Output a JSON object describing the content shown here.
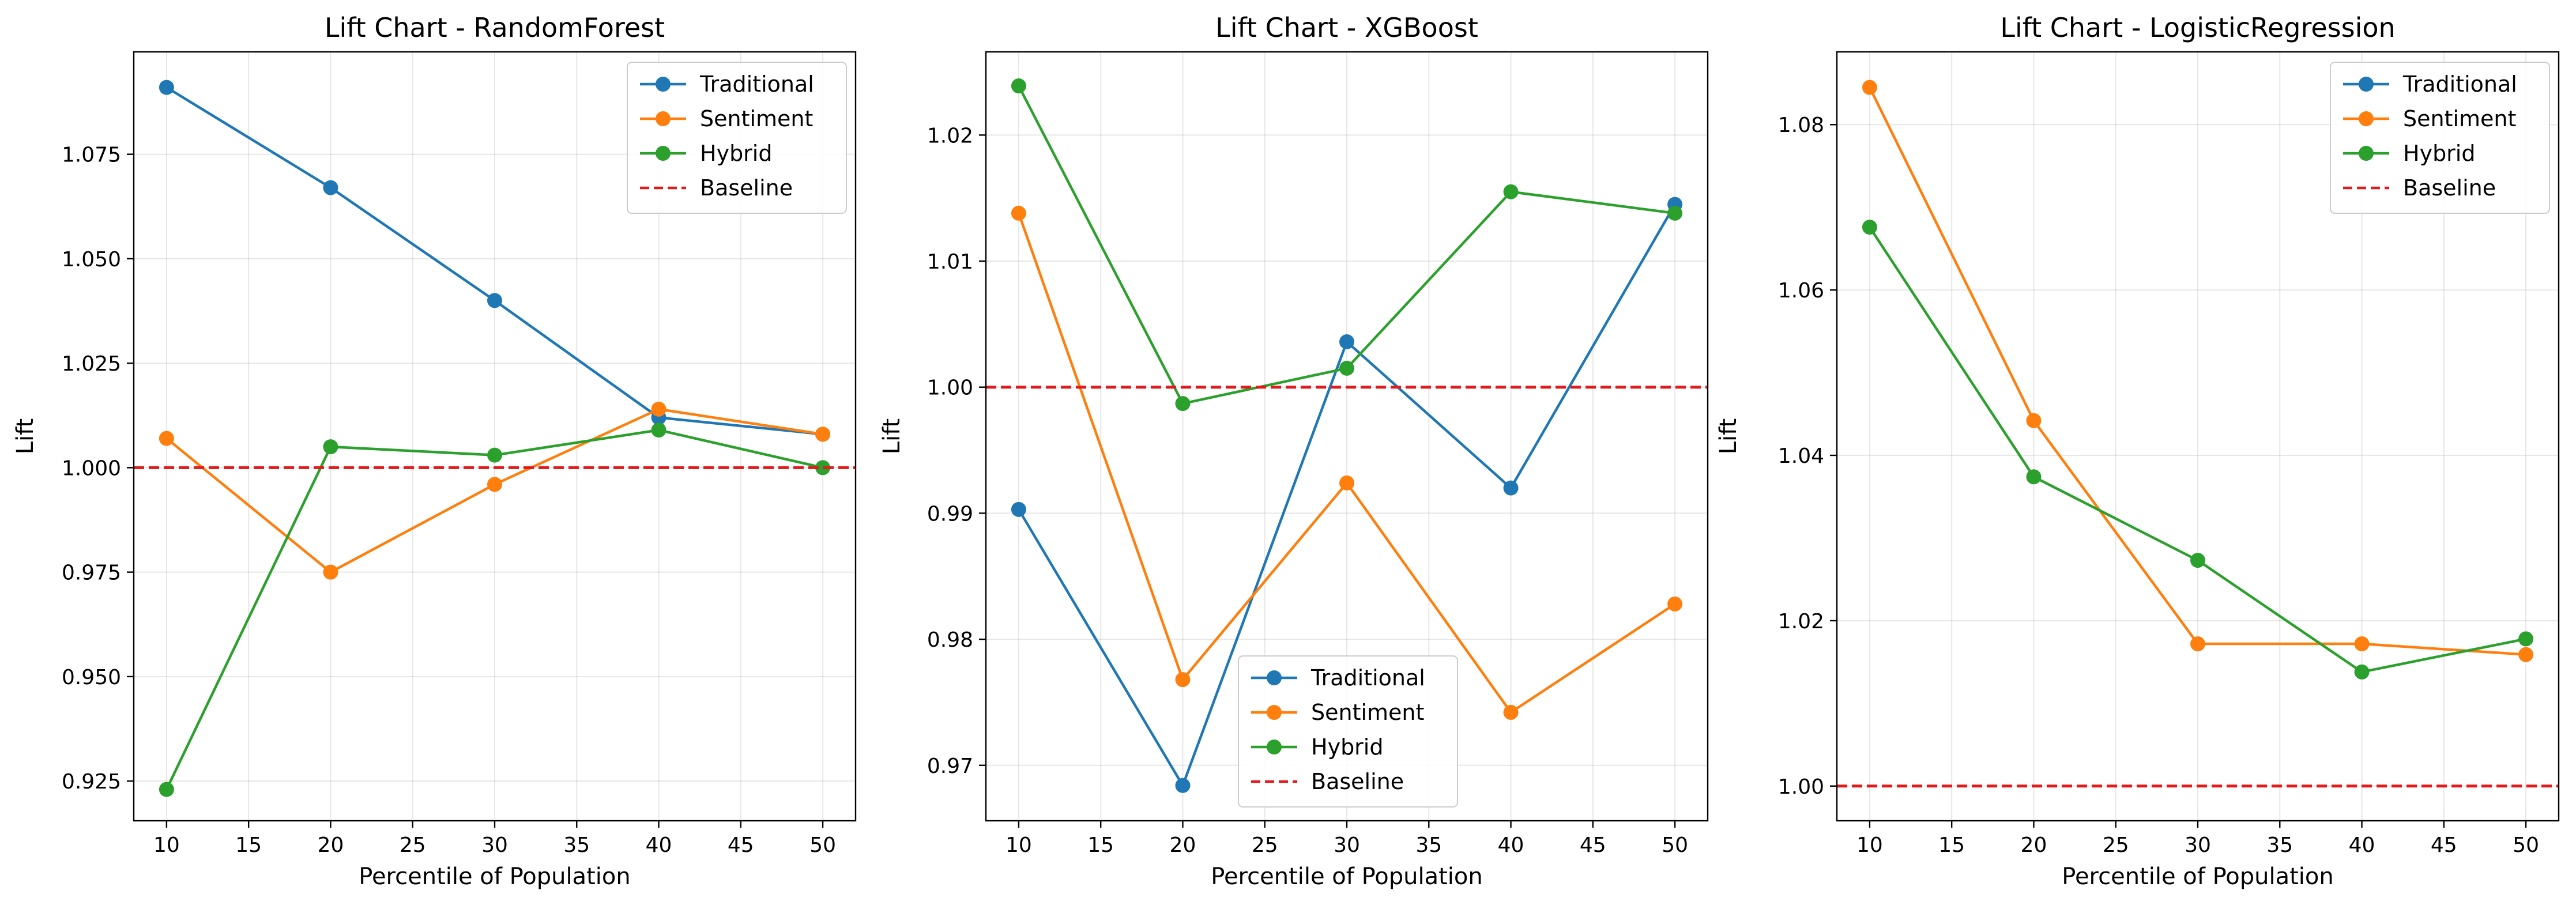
{
  "colors": {
    "traditional": "#1f77b4",
    "sentiment": "#ff7f0e",
    "hybrid": "#2ca02c",
    "baseline": "#e31a1c"
  },
  "chart_data": [
    {
      "type": "line",
      "title": "Lift Chart - RandomForest",
      "xlabel": "Percentile of Population",
      "ylabel": "Lift",
      "x": [
        10,
        20,
        30,
        40,
        50
      ],
      "xlim": [
        8,
        52
      ],
      "ylim": [
        0.9155,
        1.0995
      ],
      "xticks": [
        10,
        15,
        20,
        25,
        30,
        35,
        40,
        45,
        50
      ],
      "yticks": [
        0.925,
        0.95,
        0.975,
        1.0,
        1.025,
        1.05,
        1.075
      ],
      "ytick_labels": [
        "0.925",
        "0.950",
        "0.975",
        "1.000",
        "1.025",
        "1.050",
        "1.075"
      ],
      "grid": true,
      "legend_position": "top-right",
      "series": [
        {
          "name": "Traditional",
          "color": "#1f77b4",
          "values": [
            1.091,
            1.067,
            1.04,
            1.012,
            1.008
          ]
        },
        {
          "name": "Sentiment",
          "color": "#ff7f0e",
          "values": [
            1.007,
            0.975,
            0.996,
            1.014,
            1.008
          ]
        },
        {
          "name": "Hybrid",
          "color": "#2ca02c",
          "values": [
            0.923,
            1.005,
            1.003,
            1.009,
            1.0
          ]
        }
      ],
      "baseline": {
        "name": "Baseline",
        "color": "#e31a1c",
        "value": 1.0
      }
    },
    {
      "type": "line",
      "title": "Lift Chart - XGBoost",
      "xlabel": "Percentile of Population",
      "ylabel": "Lift",
      "x": [
        10,
        20,
        30,
        40,
        50
      ],
      "xlim": [
        8,
        52
      ],
      "ylim": [
        0.9656,
        1.0266
      ],
      "xticks": [
        10,
        15,
        20,
        25,
        30,
        35,
        40,
        45,
        50
      ],
      "yticks": [
        0.97,
        0.98,
        0.99,
        1.0,
        1.01,
        1.02
      ],
      "ytick_labels": [
        "0.97",
        "0.98",
        "0.99",
        "1.00",
        "1.01",
        "1.02"
      ],
      "grid": true,
      "legend_position": "bottom-center",
      "series": [
        {
          "name": "Traditional",
          "color": "#1f77b4",
          "values": [
            0.9903,
            0.9684,
            1.0036,
            0.992,
            1.0145
          ]
        },
        {
          "name": "Sentiment",
          "color": "#ff7f0e",
          "values": [
            1.0138,
            0.9768,
            0.9924,
            0.9742,
            0.9828
          ]
        },
        {
          "name": "Hybrid",
          "color": "#2ca02c",
          "values": [
            1.0239,
            0.9987,
            1.0015,
            1.0155,
            1.0138
          ]
        }
      ],
      "baseline": {
        "name": "Baseline",
        "color": "#e31a1c",
        "value": 1.0
      }
    },
    {
      "type": "line",
      "title": "Lift Chart - LogisticRegression",
      "xlabel": "Percentile of Population",
      "ylabel": "Lift",
      "x": [
        10,
        20,
        30,
        40,
        50
      ],
      "xlim": [
        8,
        52
      ],
      "ylim": [
        0.9958,
        1.0888
      ],
      "xticks": [
        10,
        15,
        20,
        25,
        30,
        35,
        40,
        45,
        50
      ],
      "yticks": [
        1.0,
        1.02,
        1.04,
        1.06,
        1.08
      ],
      "ytick_labels": [
        "1.00",
        "1.02",
        "1.04",
        "1.06",
        "1.08"
      ],
      "grid": true,
      "legend_position": "top-right",
      "series": [
        {
          "name": "Traditional",
          "color": "#1f77b4",
          "values": [
            null,
            null,
            null,
            null,
            null
          ]
        },
        {
          "name": "Sentiment",
          "color": "#ff7f0e",
          "values": [
            1.0845,
            1.0442,
            1.0172,
            1.0172,
            1.0159
          ]
        },
        {
          "name": "Hybrid",
          "color": "#2ca02c",
          "values": [
            1.0676,
            1.0374,
            1.0273,
            1.0138,
            1.0178
          ]
        }
      ],
      "baseline": {
        "name": "Baseline",
        "color": "#e31a1c",
        "value": 1.0
      }
    }
  ]
}
